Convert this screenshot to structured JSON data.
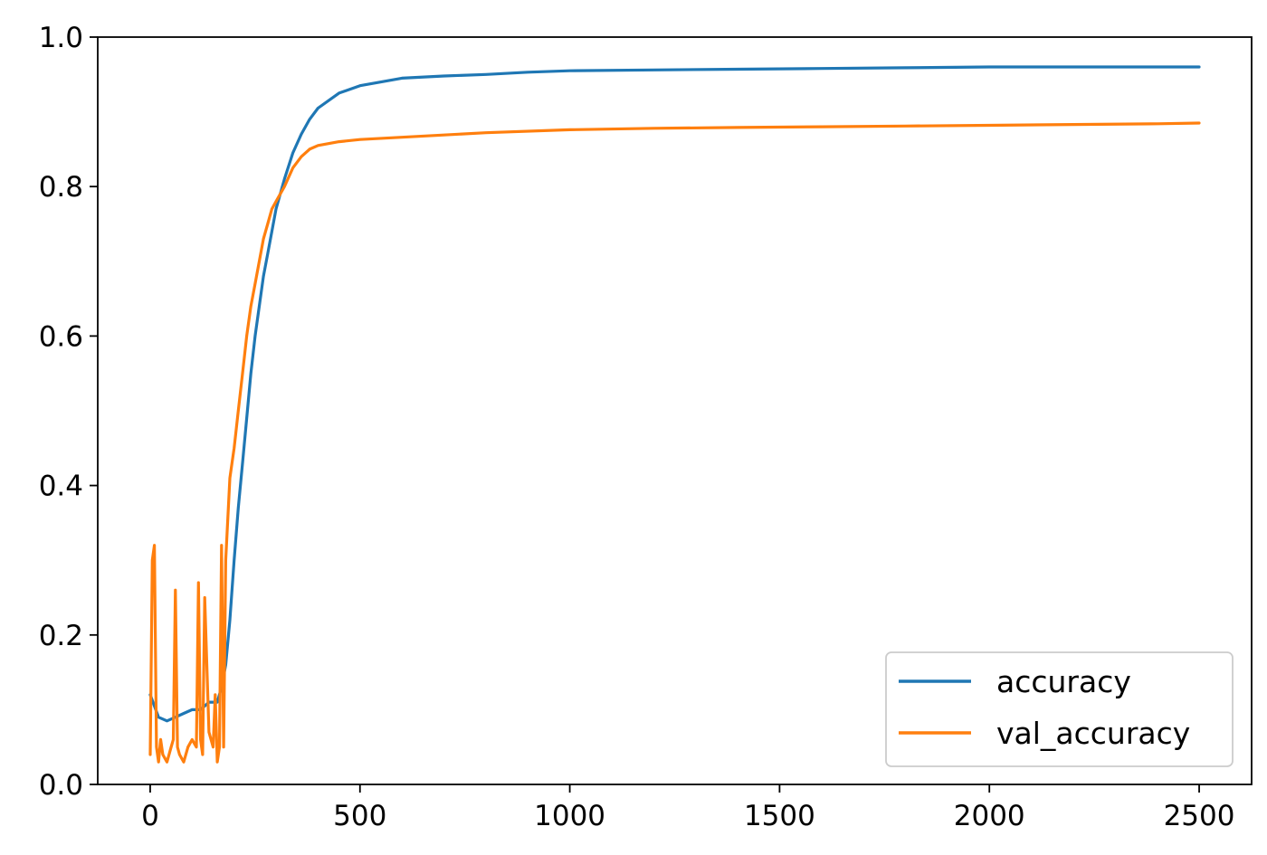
{
  "chart_data": {
    "type": "line",
    "title": "",
    "xlabel": "",
    "ylabel": "",
    "xlim": [
      -125,
      2625
    ],
    "ylim": [
      0.0,
      1.0
    ],
    "grid": false,
    "legend_position": "lower right",
    "x_ticks": [
      0,
      500,
      1000,
      1500,
      2000,
      2500
    ],
    "x_tick_labels": [
      "0",
      "500",
      "1000",
      "1500",
      "2000",
      "2500"
    ],
    "y_ticks": [
      0.0,
      0.2,
      0.4,
      0.6,
      0.8,
      1.0
    ],
    "y_tick_labels": [
      "0.0",
      "0.2",
      "0.4",
      "0.6",
      "0.8",
      "1.0"
    ],
    "series": [
      {
        "name": "accuracy",
        "color": "#1f77b4",
        "x": [
          0,
          20,
          40,
          60,
          80,
          100,
          120,
          140,
          160,
          170,
          180,
          190,
          200,
          210,
          220,
          230,
          240,
          250,
          260,
          270,
          280,
          290,
          300,
          320,
          340,
          360,
          380,
          400,
          450,
          500,
          550,
          600,
          700,
          800,
          900,
          1000,
          1200,
          1400,
          1600,
          1800,
          2000,
          2200,
          2400,
          2500
        ],
        "y": [
          0.12,
          0.09,
          0.085,
          0.09,
          0.095,
          0.1,
          0.1,
          0.11,
          0.11,
          0.13,
          0.16,
          0.22,
          0.3,
          0.37,
          0.43,
          0.49,
          0.55,
          0.6,
          0.64,
          0.68,
          0.71,
          0.74,
          0.77,
          0.81,
          0.845,
          0.87,
          0.89,
          0.905,
          0.925,
          0.935,
          0.94,
          0.945,
          0.948,
          0.95,
          0.953,
          0.955,
          0.956,
          0.957,
          0.958,
          0.959,
          0.96,
          0.96,
          0.96,
          0.96
        ]
      },
      {
        "name": "val_accuracy",
        "color": "#ff7f0e",
        "x": [
          0,
          5,
          10,
          15,
          20,
          25,
          30,
          40,
          50,
          55,
          60,
          65,
          70,
          80,
          90,
          100,
          110,
          115,
          120,
          125,
          130,
          140,
          150,
          155,
          160,
          165,
          170,
          175,
          180,
          190,
          200,
          210,
          220,
          230,
          240,
          250,
          260,
          270,
          280,
          290,
          300,
          320,
          340,
          360,
          380,
          400,
          450,
          500,
          600,
          700,
          800,
          1000,
          1200,
          1400,
          1600,
          1800,
          2000,
          2200,
          2400,
          2500
        ],
        "y": [
          0.04,
          0.3,
          0.32,
          0.05,
          0.03,
          0.06,
          0.04,
          0.03,
          0.05,
          0.06,
          0.26,
          0.05,
          0.04,
          0.03,
          0.05,
          0.06,
          0.05,
          0.27,
          0.06,
          0.04,
          0.25,
          0.07,
          0.05,
          0.12,
          0.03,
          0.05,
          0.32,
          0.05,
          0.3,
          0.41,
          0.45,
          0.5,
          0.55,
          0.6,
          0.64,
          0.67,
          0.7,
          0.73,
          0.75,
          0.77,
          0.78,
          0.8,
          0.825,
          0.84,
          0.85,
          0.855,
          0.86,
          0.863,
          0.866,
          0.869,
          0.872,
          0.876,
          0.878,
          0.879,
          0.88,
          0.881,
          0.882,
          0.883,
          0.884,
          0.885
        ]
      }
    ]
  }
}
